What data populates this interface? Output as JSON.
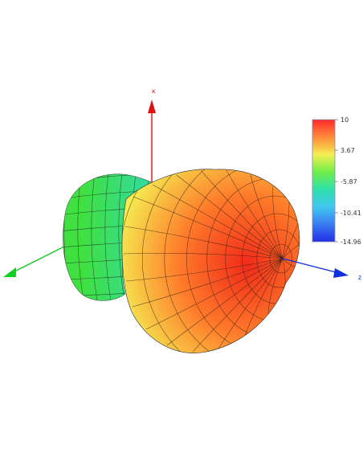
{
  "plot": {
    "axes": [
      {
        "id": "x",
        "label": "x",
        "color": "#e01010"
      },
      {
        "id": "y",
        "label": "",
        "color": "#10d020"
      },
      {
        "id": "z",
        "label": "z",
        "color": "#1030e0"
      }
    ],
    "colorbar": {
      "ticks": [
        "10",
        "3.67",
        "-5.87",
        "-10.41",
        "-14.96"
      ],
      "gradient": [
        "#ff2a2a",
        "#ff8a3a",
        "#f4ee52",
        "#6fee4a",
        "#30e0a8",
        "#40c8f0",
        "#3a7af0",
        "#2030e8"
      ]
    },
    "surface_colors": {
      "front_center": "#f02a1a",
      "front_mid": "#ff7a2a",
      "front_edge": "#f4ee52",
      "back_lobe": "#40e040",
      "back_lobe_edge": "#30d8c0"
    },
    "caption": ""
  }
}
